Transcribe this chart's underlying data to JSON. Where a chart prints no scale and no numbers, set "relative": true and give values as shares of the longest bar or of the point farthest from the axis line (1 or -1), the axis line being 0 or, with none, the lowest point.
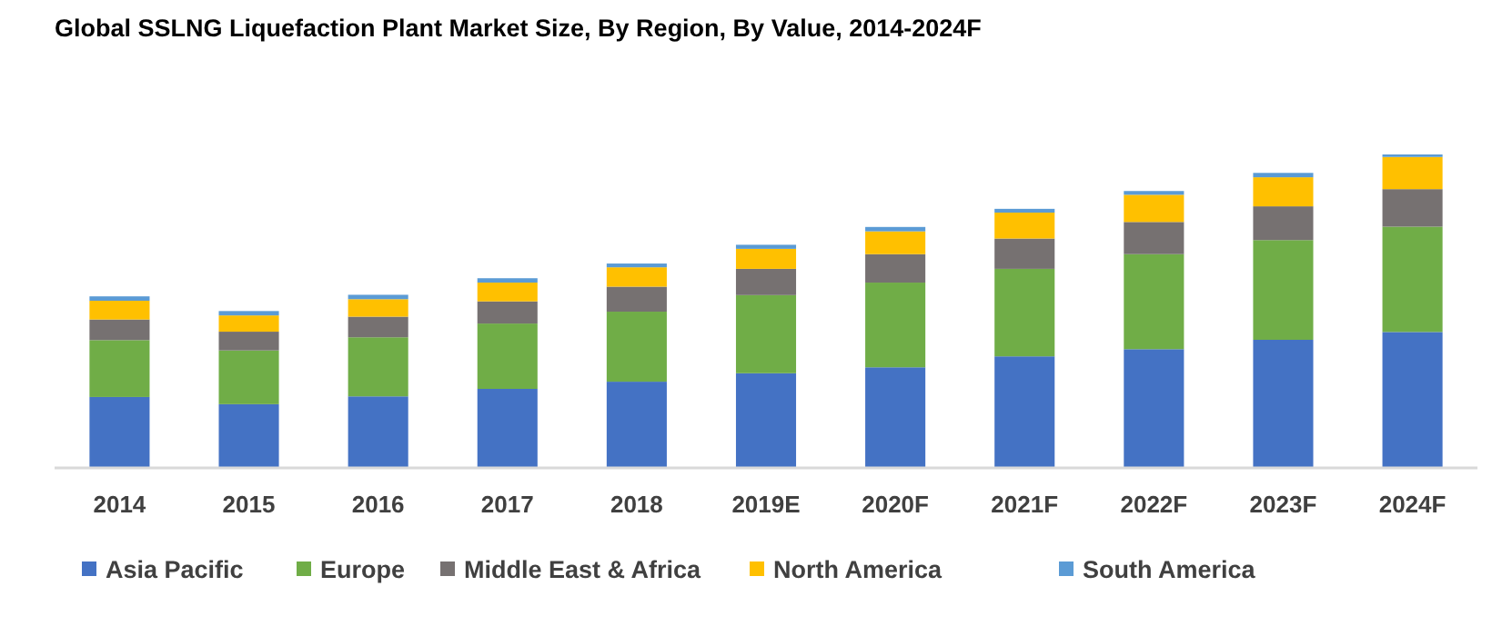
{
  "chart_data": {
    "type": "bar",
    "title": "Global SSLNG Liquefaction Plant Market Size, By Region, By Value, 2014-2024F",
    "categories": [
      "2014",
      "2015",
      "2016",
      "2017",
      "2018",
      "2019E",
      "2020F",
      "2021F",
      "2022F",
      "2023F",
      "2024F"
    ],
    "stacked": true,
    "relative": true,
    "legend": "bottom",
    "series": [
      {
        "name": "Asia Pacific",
        "color": "#4472c4",
        "values": [
          0.224,
          0.201,
          0.226,
          0.25,
          0.273,
          0.3,
          0.319,
          0.354,
          0.377,
          0.407,
          0.432
        ]
      },
      {
        "name": "Europe",
        "color": "#70ad47",
        "values": [
          0.182,
          0.172,
          0.189,
          0.209,
          0.224,
          0.25,
          0.271,
          0.28,
          0.304,
          0.319,
          0.337
        ]
      },
      {
        "name": "Middle East & Africa",
        "color": "#767171",
        "values": [
          0.066,
          0.06,
          0.066,
          0.071,
          0.08,
          0.084,
          0.091,
          0.097,
          0.103,
          0.108,
          0.12
        ]
      },
      {
        "name": "North America",
        "color": "#ffc000",
        "values": [
          0.06,
          0.052,
          0.056,
          0.06,
          0.062,
          0.064,
          0.073,
          0.083,
          0.087,
          0.093,
          0.103
        ]
      },
      {
        "name": "South America",
        "color": "#5b9bd5",
        "values": [
          0.014,
          0.014,
          0.014,
          0.014,
          0.012,
          0.013,
          0.014,
          0.012,
          0.012,
          0.014,
          0.008
        ]
      }
    ]
  }
}
